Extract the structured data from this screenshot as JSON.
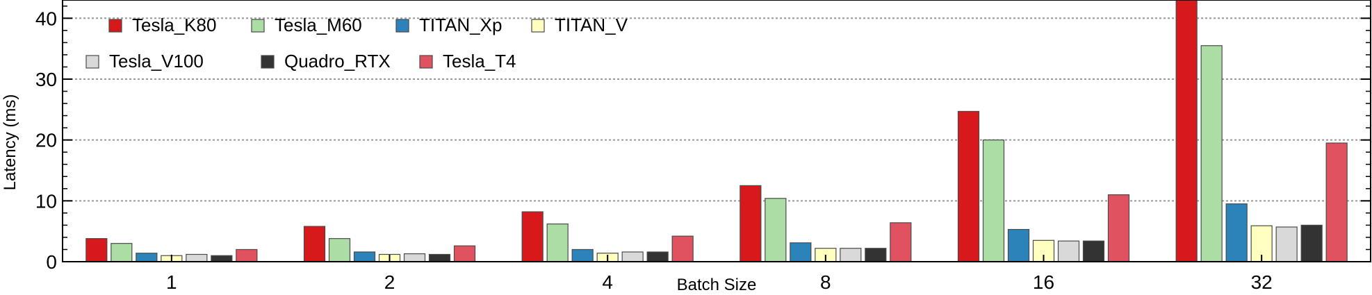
{
  "chart_data": {
    "type": "bar",
    "xlabel": "Batch Size",
    "ylabel": "Latency (ms)",
    "ylim": [
      0,
      43
    ],
    "yticks": [
      0,
      10,
      20,
      30,
      40
    ],
    "grid": true,
    "legend_position": "top-left",
    "categories": [
      "1",
      "2",
      "4",
      "8",
      "16",
      "32"
    ],
    "series": [
      {
        "name": "Tesla_K80",
        "color": "#d7191c",
        "values": [
          3.8,
          5.8,
          8.2,
          12.5,
          24.7,
          43.0
        ]
      },
      {
        "name": "Tesla_M60",
        "color": "#abdda4",
        "values": [
          3.0,
          3.8,
          6.2,
          10.4,
          20.0,
          35.5
        ]
      },
      {
        "name": "TITAN_Xp",
        "color": "#2b83ba",
        "values": [
          1.4,
          1.6,
          2.0,
          3.1,
          5.3,
          9.5
        ]
      },
      {
        "name": "TITAN_V",
        "color": "#ffffbf",
        "values": [
          1.0,
          1.2,
          1.4,
          2.2,
          3.5,
          5.9
        ]
      },
      {
        "name": "Tesla_V100",
        "color": "#d9d9d9",
        "values": [
          1.2,
          1.3,
          1.6,
          2.2,
          3.4,
          5.7
        ]
      },
      {
        "name": "Quadro_RTX",
        "color": "#333333",
        "values": [
          1.0,
          1.2,
          1.6,
          2.2,
          3.4,
          6.0
        ]
      },
      {
        "name": "Tesla_T4",
        "color": "#e05260",
        "values": [
          2.0,
          2.6,
          4.2,
          6.4,
          11.0,
          19.5
        ]
      }
    ]
  }
}
